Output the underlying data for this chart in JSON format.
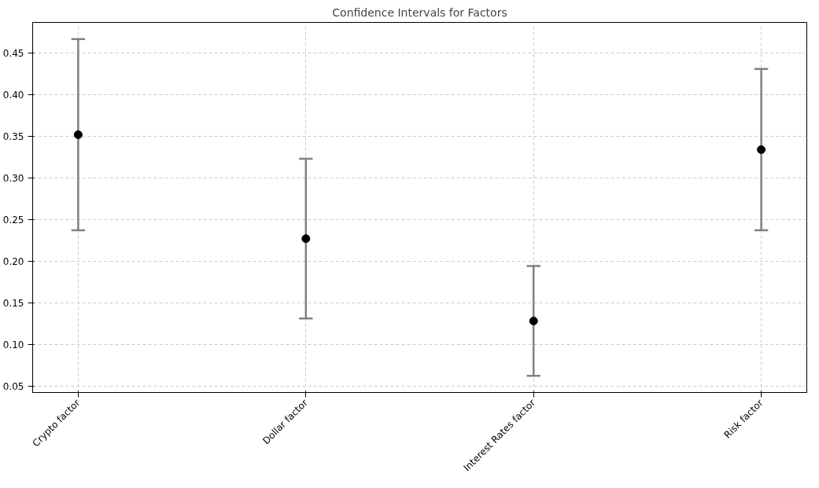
{
  "chart_data": {
    "type": "scatter",
    "title": "Confidence Intervals for Factors",
    "categories": [
      "Crypto factor",
      "Dollar factor",
      "Interest Rates factor",
      "Risk factor"
    ],
    "values": [
      0.352,
      0.227,
      0.128,
      0.334
    ],
    "errors": [
      0.115,
      0.096,
      0.066,
      0.097
    ],
    "color": "#000000",
    "marker": "circle",
    "ylim": [
      0.042,
      0.487
    ],
    "yticks": [
      0.05,
      {
        "value": 0.1,
        "label": "0.10"
      },
      0.15,
      {
        "value": 0.2,
        "label": "0.20"
      },
      0.25,
      {
        "value": 0.3,
        "label": "0.30"
      },
      0.35,
      {
        "value": 0.4,
        "label": "0.40"
      },
      0.45
    ],
    "grid": true
  }
}
